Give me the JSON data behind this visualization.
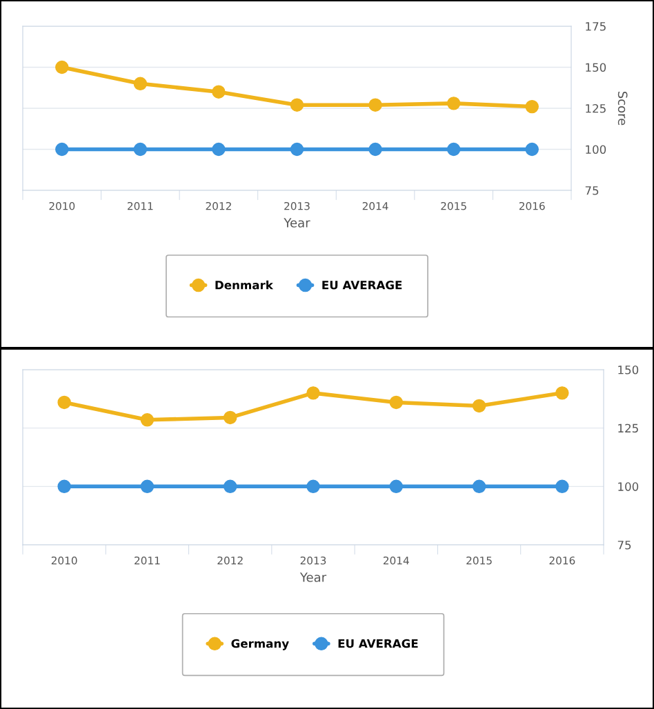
{
  "chart_data": [
    {
      "type": "line",
      "xlabel": "Year",
      "ylabel": "Score",
      "categories": [
        "2010",
        "2011",
        "2012",
        "2013",
        "2014",
        "2015",
        "2016"
      ],
      "ylim": [
        75,
        175
      ],
      "yticks": [
        75,
        100,
        125,
        150,
        175
      ],
      "grid": "y",
      "legend": "bottom",
      "marker": "circle",
      "line_style": "solid",
      "series": [
        {
          "name": "Denmark",
          "color": "#f0b41c",
          "values": [
            150,
            140,
            135,
            127,
            127,
            128,
            126
          ]
        },
        {
          "name": "EU AVERAGE",
          "color": "#3a93dd",
          "values": [
            100,
            100,
            100,
            100,
            100,
            100,
            100
          ]
        }
      ]
    },
    {
      "type": "line",
      "xlabel": "Year",
      "categories": [
        "2010",
        "2011",
        "2012",
        "2013",
        "2014",
        "2015",
        "2016"
      ],
      "ylim": [
        75,
        150
      ],
      "yticks": [
        75,
        100,
        125,
        150
      ],
      "grid": "y",
      "legend": "bottom",
      "marker": "circle",
      "line_style": "solid",
      "series": [
        {
          "name": "Germany",
          "color": "#f0b41c",
          "values": [
            136,
            128.5,
            129.5,
            140,
            136,
            134.5,
            140
          ]
        },
        {
          "name": "EU AVERAGE",
          "color": "#3a93dd",
          "values": [
            100,
            100,
            100,
            100,
            100,
            100,
            100
          ]
        }
      ]
    }
  ]
}
